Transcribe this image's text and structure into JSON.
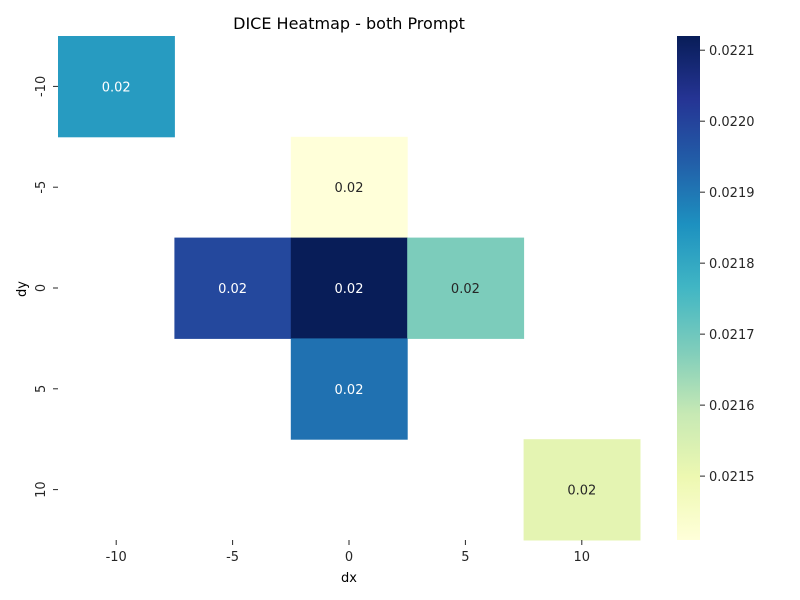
{
  "chart_data": {
    "type": "heatmap",
    "title": "DICE Heatmap - both Prompt",
    "xlabel": "dx",
    "ylabel": "dy",
    "x_categories": [
      "-10",
      "-5",
      "0",
      "5",
      "10"
    ],
    "y_categories": [
      "-10",
      "-5",
      "0",
      "5",
      "10"
    ],
    "cells": [
      {
        "dx": "-10",
        "dy": "-10",
        "value": 0.02183,
        "label": "0.02"
      },
      {
        "dx": "0",
        "dy": "-5",
        "value": 0.02141,
        "label": "0.02"
      },
      {
        "dx": "-5",
        "dy": "0",
        "value": 0.02199,
        "label": "0.02"
      },
      {
        "dx": "0",
        "dy": "0",
        "value": 0.02212,
        "label": "0.02"
      },
      {
        "dx": "5",
        "dy": "0",
        "value": 0.02168,
        "label": "0.02"
      },
      {
        "dx": "0",
        "dy": "5",
        "value": 0.02191,
        "label": "0.02"
      },
      {
        "dx": "10",
        "dy": "10",
        "value": 0.02152,
        "label": "0.02"
      }
    ],
    "colorbar": {
      "colormap": "YlGnBu",
      "vmin": 0.02141,
      "vmax": 0.02212,
      "ticks": [
        "0.0215",
        "0.0216",
        "0.0217",
        "0.0218",
        "0.0219",
        "0.0220",
        "0.0221"
      ]
    },
    "grid": false
  }
}
